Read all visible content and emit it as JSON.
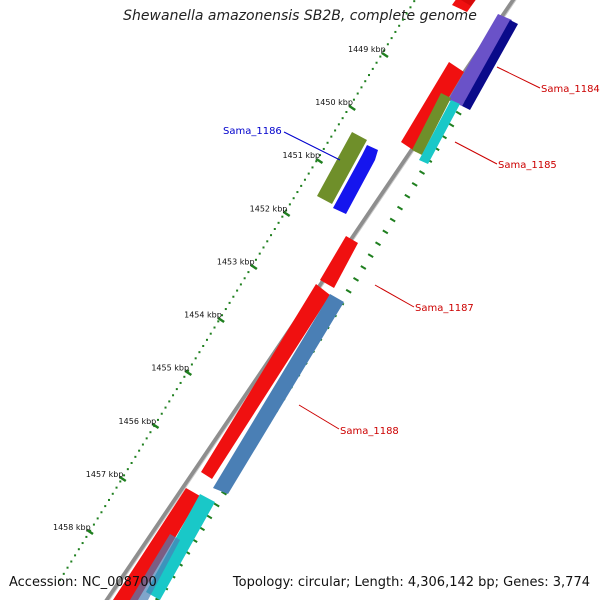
{
  "title": "Shewanella amazonensis SB2B, complete genome",
  "footer": {
    "accession": "Accession: NC_008700",
    "summary": "Topology: circular; Length: 4,306,142 bp; Genes: 3,774"
  },
  "colors": {
    "backbone": "#8e8e8e",
    "tick": "#1f7f1f",
    "cds_red": "#f01010",
    "gene_blue": "#1515ee",
    "gene_navy": "#0a0a8a",
    "gene_olive": "#6f8f2a",
    "gene_steel": "#4a7fb5",
    "gene_cyan": "#19c8c8",
    "gene_purple": "#6a52c8",
    "label_red": "#cc0000",
    "label_blue": "#0000cc"
  },
  "kbp_ticks": [
    {
      "kbp": 1449,
      "label": "1449 kbp"
    },
    {
      "kbp": 1450,
      "label": "1450 kbp"
    },
    {
      "kbp": 1451,
      "label": "1451 kbp"
    },
    {
      "kbp": 1452,
      "label": "1452 kbp"
    },
    {
      "kbp": 1453,
      "label": "1453 kbp"
    },
    {
      "kbp": 1454,
      "label": "1454 kbp"
    },
    {
      "kbp": 1455,
      "label": "1455 kbp"
    },
    {
      "kbp": 1456,
      "label": "1456 kbp"
    },
    {
      "kbp": 1457,
      "label": "1457 kbp"
    },
    {
      "kbp": 1458,
      "label": "1458 kbp"
    }
  ],
  "gene_labels": [
    {
      "text": "Sama_1184",
      "color": "label_red"
    },
    {
      "text": "Sama_1185",
      "color": "label_red"
    },
    {
      "text": "Sama_1186",
      "color": "label_blue"
    },
    {
      "text": "Sama_1187",
      "color": "label_red"
    },
    {
      "text": "Sama_1188",
      "color": "label_red"
    }
  ]
}
